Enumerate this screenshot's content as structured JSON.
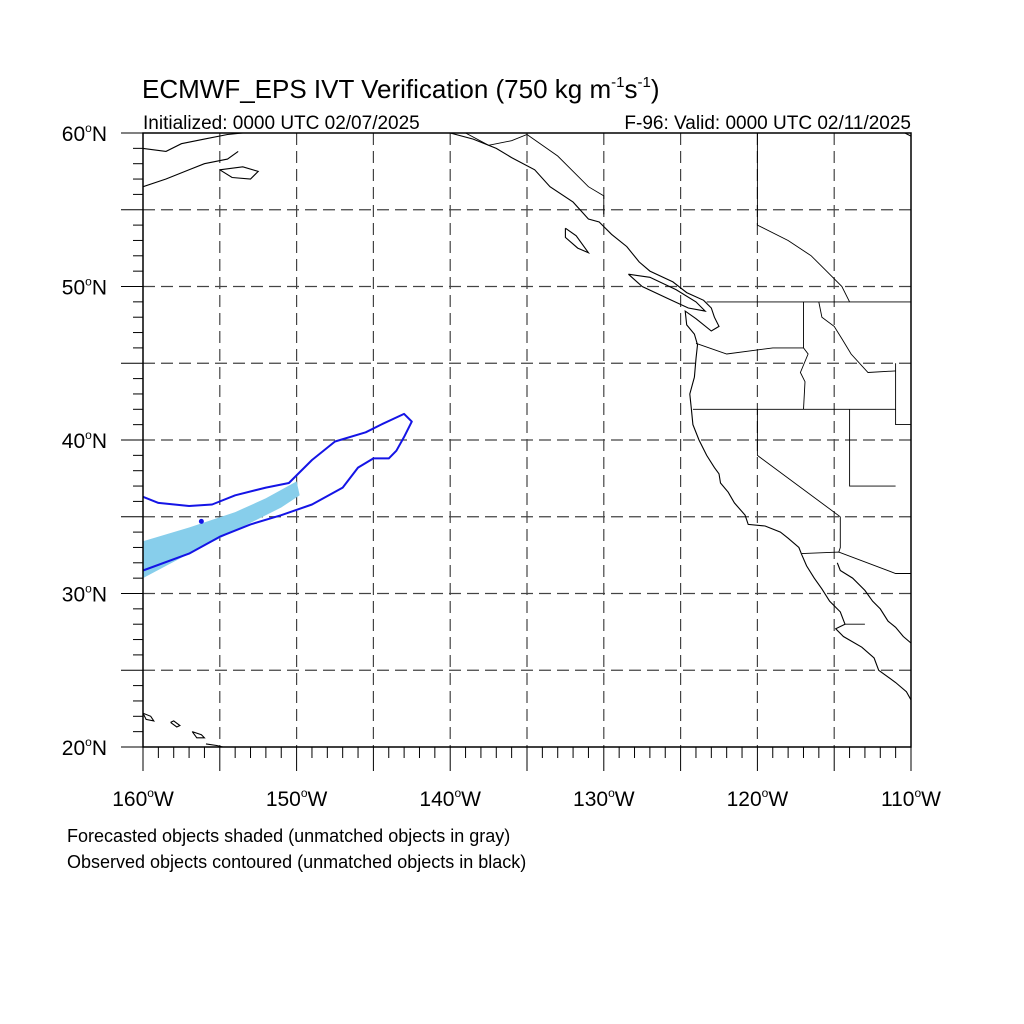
{
  "title": {
    "main": "ECMWF_EPS IVT Verification (750 kg m",
    "sup1": "-1",
    "mid": "s",
    "sup2": "-1",
    "end": ")"
  },
  "subtitle": {
    "initialized": "Initialized: 0000 UTC 02/07/2025",
    "valid": "F-96: Valid: 0000 UTC 02/11/2025"
  },
  "footer": {
    "line1": "Forecasted objects shaded (unmatched objects in gray)",
    "line2": "Observed objects contoured (unmatched objects in black)"
  },
  "map": {
    "lon_range": [
      -160,
      -110
    ],
    "lat_range": [
      20,
      60
    ],
    "grid_lons": [
      -155,
      -150,
      -145,
      -140,
      -135,
      -130,
      -125,
      -120,
      -115
    ],
    "grid_lats": [
      25,
      30,
      35,
      40,
      45,
      50,
      55
    ],
    "lon_labels": [
      {
        "lon": -160,
        "deg": "160",
        "dir": "W"
      },
      {
        "lon": -150,
        "deg": "150",
        "dir": "W"
      },
      {
        "lon": -140,
        "deg": "140",
        "dir": "W"
      },
      {
        "lon": -130,
        "deg": "130",
        "dir": "W"
      },
      {
        "lon": -120,
        "deg": "120",
        "dir": "W"
      },
      {
        "lon": -110,
        "deg": "110",
        "dir": "W"
      }
    ],
    "lat_labels": [
      {
        "lat": 60,
        "deg": "60",
        "dir": "N"
      },
      {
        "lat": 50,
        "deg": "50",
        "dir": "N"
      },
      {
        "lat": 40,
        "deg": "40",
        "dir": "N"
      },
      {
        "lat": 30,
        "deg": "30",
        "dir": "N"
      },
      {
        "lat": 20,
        "deg": "20",
        "dir": "N"
      }
    ],
    "colors": {
      "forecast_fill": "#87ceeb",
      "observed_contour": "#1414e6",
      "coastline": "#000000",
      "grid": "#444444"
    },
    "forecast_object": [
      [
        -160,
        33.4
      ],
      [
        -157,
        34.3
      ],
      [
        -154,
        35.3
      ],
      [
        -152,
        36.2
      ],
      [
        -150,
        37.3
      ],
      [
        -149.8,
        36.4
      ],
      [
        -151,
        35.6
      ],
      [
        -153,
        34.6
      ],
      [
        -155,
        33.6
      ],
      [
        -157,
        32.6
      ],
      [
        -160,
        31.0
      ]
    ],
    "observed_object": [
      [
        -160,
        36.3
      ],
      [
        -159,
        35.9
      ],
      [
        -157,
        35.7
      ],
      [
        -155.5,
        35.8
      ],
      [
        -154,
        36.4
      ],
      [
        -152,
        36.9
      ],
      [
        -150.5,
        37.2
      ],
      [
        -149,
        38.7
      ],
      [
        -147.5,
        39.9
      ],
      [
        -145.5,
        40.5
      ],
      [
        -144.5,
        41.0
      ],
      [
        -143,
        41.7
      ],
      [
        -142.5,
        41.2
      ],
      [
        -143,
        40.2
      ],
      [
        -143.5,
        39.3
      ],
      [
        -144,
        38.8
      ],
      [
        -145,
        38.8
      ],
      [
        -146,
        38.2
      ],
      [
        -147,
        36.9
      ],
      [
        -149,
        35.8
      ],
      [
        -151,
        35.1
      ],
      [
        -153,
        34.5
      ],
      [
        -155,
        33.7
      ],
      [
        -157,
        32.6
      ],
      [
        -160,
        31.5
      ]
    ],
    "observed_dot": [
      -156.2,
      34.7
    ],
    "coastlines": [
      [
        [
          -160,
          59.0
        ],
        [
          -158.5,
          58.8
        ],
        [
          -157.5,
          59.3
        ],
        [
          -156,
          59.6
        ],
        [
          -154.5,
          59.9
        ],
        [
          -153.5,
          60.0
        ]
      ],
      [
        [
          -160,
          56.5
        ],
        [
          -158.5,
          57.0
        ],
        [
          -157,
          57.6
        ],
        [
          -156,
          58.0
        ],
        [
          -154.5,
          58.3
        ],
        [
          -153.8,
          58.8
        ]
      ],
      [
        [
          -155.0,
          57.6
        ],
        [
          -153.5,
          57.8
        ],
        [
          -152.5,
          57.5
        ],
        [
          -153.0,
          57.0
        ],
        [
          -154.2,
          57.1
        ],
        [
          -155.0,
          57.6
        ]
      ],
      [
        [
          -140,
          60.0
        ],
        [
          -138.5,
          59.6
        ],
        [
          -137,
          59.0
        ],
        [
          -136,
          58.4
        ],
        [
          -134.5,
          57.6
        ],
        [
          -133.5,
          56.5
        ],
        [
          -132,
          55.5
        ],
        [
          -131,
          54.4
        ],
        [
          -130.3,
          54.2
        ],
        [
          -129.5,
          53.4
        ],
        [
          -128.5,
          52.6
        ],
        [
          -127.7,
          51.6
        ],
        [
          -127,
          51.0
        ],
        [
          -125.5,
          50.3
        ],
        [
          -124.6,
          49.6
        ],
        [
          -123.5,
          49.1
        ],
        [
          -123.0,
          48.6
        ],
        [
          -122.8,
          48.0
        ],
        [
          -122.5,
          47.4
        ],
        [
          -123.0,
          47.1
        ],
        [
          -124.0,
          47.9
        ],
        [
          -124.7,
          48.4
        ],
        [
          -124.6,
          47.5
        ],
        [
          -124.1,
          46.9
        ],
        [
          -123.9,
          46.2
        ],
        [
          -124.0,
          45.3
        ],
        [
          -124.1,
          44.1
        ],
        [
          -124.4,
          43.0
        ],
        [
          -124.3,
          42.0
        ],
        [
          -124.2,
          41.0
        ],
        [
          -123.8,
          40.0
        ],
        [
          -123.3,
          39.0
        ],
        [
          -122.8,
          38.2
        ],
        [
          -122.5,
          37.8
        ],
        [
          -122.4,
          37.2
        ],
        [
          -121.9,
          36.6
        ],
        [
          -121.5,
          35.9
        ],
        [
          -120.8,
          35.1
        ],
        [
          -120.6,
          34.5
        ],
        [
          -119.5,
          34.4
        ],
        [
          -118.5,
          34.0
        ],
        [
          -118.0,
          33.6
        ],
        [
          -117.3,
          33.0
        ],
        [
          -117.1,
          32.5
        ],
        [
          -116.8,
          31.8
        ],
        [
          -116.3,
          31.0
        ],
        [
          -115.8,
          30.3
        ],
        [
          -115.3,
          29.5
        ],
        [
          -114.6,
          28.8
        ],
        [
          -114.3,
          28.0
        ],
        [
          -114.9,
          27.7
        ],
        [
          -114.4,
          27.2
        ],
        [
          -113.2,
          26.5
        ],
        [
          -112.4,
          25.8
        ],
        [
          -112.1,
          25.0
        ],
        [
          -111.0,
          24.2
        ],
        [
          -110.3,
          23.6
        ],
        [
          -109.9,
          22.9
        ]
      ],
      [
        [
          -128.4,
          50.8
        ],
        [
          -127.0,
          50.6
        ],
        [
          -125.3,
          49.8
        ],
        [
          -124.0,
          49.0
        ],
        [
          -123.4,
          48.4
        ],
        [
          -124.5,
          48.6
        ],
        [
          -125.8,
          49.2
        ],
        [
          -127.5,
          50.0
        ],
        [
          -128.4,
          50.8
        ]
      ],
      [
        [
          -132.5,
          53.8
        ],
        [
          -131.8,
          53.3
        ],
        [
          -131.0,
          52.2
        ],
        [
          -131.7,
          52.5
        ],
        [
          -132.5,
          53.2
        ],
        [
          -132.5,
          53.8
        ]
      ],
      [
        [
          -114.8,
          32.0
        ],
        [
          -114.6,
          31.5
        ],
        [
          -113.8,
          31.0
        ],
        [
          -113.0,
          30.2
        ],
        [
          -112.5,
          29.5
        ],
        [
          -112.0,
          29.0
        ],
        [
          -111.5,
          28.2
        ],
        [
          -111.0,
          27.8
        ],
        [
          -110.5,
          27.2
        ],
        [
          -109.8,
          26.6
        ],
        [
          -109.4,
          26.0
        ],
        [
          -108.8,
          25.5
        ],
        [
          -108.0,
          25.0
        ]
      ],
      [
        [
          -110.4,
          60.0
        ],
        [
          -110.0,
          59.8
        ]
      ],
      [
        [
          -160,
          22.2
        ],
        [
          -159.5,
          22.0
        ],
        [
          -159.3,
          21.7
        ],
        [
          -159.8,
          21.8
        ],
        [
          -160,
          22.2
        ]
      ],
      [
        [
          -158.2,
          21.6
        ],
        [
          -157.8,
          21.3
        ],
        [
          -157.6,
          21.4
        ],
        [
          -158.0,
          21.7
        ],
        [
          -158.2,
          21.6
        ]
      ],
      [
        [
          -156.8,
          21.0
        ],
        [
          -156.2,
          20.8
        ],
        [
          -156.0,
          20.6
        ],
        [
          -156.5,
          20.6
        ],
        [
          -156.8,
          21.0
        ]
      ],
      [
        [
          -155.9,
          20.2
        ],
        [
          -155.2,
          20.1
        ],
        [
          -154.8,
          20.0
        ]
      ]
    ],
    "boundaries": [
      [
        [
          -123.3,
          49.0
        ],
        [
          -110,
          49.0
        ]
      ],
      [
        [
          -117.0,
          49.0
        ],
        [
          -117.0,
          46.0
        ],
        [
          -116.7,
          45.6
        ],
        [
          -117.2,
          44.4
        ],
        [
          -116.9,
          43.8
        ],
        [
          -117.0,
          42.0
        ]
      ],
      [
        [
          -124.0,
          46.3
        ],
        [
          -122.0,
          45.6
        ],
        [
          -119.0,
          46.0
        ],
        [
          -117.0,
          46.0
        ]
      ],
      [
        [
          -124.2,
          42.0
        ],
        [
          -111.0,
          42.0
        ]
      ],
      [
        [
          -120.0,
          42.0
        ],
        [
          -120.0,
          39.0
        ],
        [
          -114.6,
          35.0
        ]
      ],
      [
        [
          -114.0,
          42.0
        ],
        [
          -114.0,
          37.0
        ],
        [
          -111.0,
          37.0
        ]
      ],
      [
        [
          -116.0,
          49.0
        ],
        [
          -115.8,
          48.0
        ],
        [
          -115.0,
          47.4
        ],
        [
          -114.5,
          46.6
        ],
        [
          -113.9,
          45.6
        ],
        [
          -112.8,
          44.4
        ],
        [
          -111.0,
          44.5
        ]
      ],
      [
        [
          -111.0,
          45.0
        ],
        [
          -111.0,
          41.0
        ],
        [
          -110,
          41.0
        ]
      ],
      [
        [
          -117.1,
          32.6
        ],
        [
          -114.7,
          32.7
        ],
        [
          -111.0,
          31.3
        ],
        [
          -110,
          31.3
        ]
      ],
      [
        [
          -114.6,
          35.0
        ],
        [
          -114.6,
          33.0
        ],
        [
          -114.7,
          32.7
        ]
      ],
      [
        [
          -113.0,
          28.0
        ],
        [
          -114.3,
          28.0
        ]
      ],
      [
        [
          -120.0,
          60.0
        ],
        [
          -120.0,
          54.0
        ],
        [
          -118.0,
          53.0
        ],
        [
          -116.5,
          52.0
        ],
        [
          -115.5,
          51.0
        ],
        [
          -114.5,
          50.0
        ],
        [
          -114.0,
          49.0
        ]
      ],
      [
        [
          -139.0,
          60.0
        ],
        [
          -137.5,
          59.2
        ],
        [
          -136.0,
          59.5
        ],
        [
          -135.0,
          59.9
        ],
        [
          -133.0,
          58.5
        ],
        [
          -131.0,
          56.5
        ],
        [
          -130.0,
          55.9
        ],
        [
          -130.0,
          54.7
        ]
      ]
    ]
  }
}
